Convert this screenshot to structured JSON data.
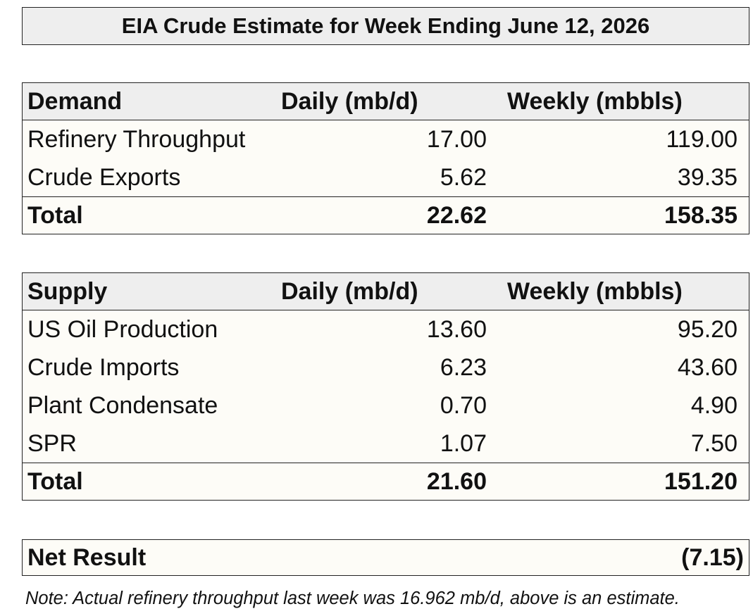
{
  "title": "EIA Crude Estimate for Week Ending June 12, 2026",
  "demand": {
    "header": {
      "label": "Demand",
      "daily": "Daily (mb/d)",
      "weekly": "Weekly (mbbls)"
    },
    "rows": [
      {
        "label": "Refinery Throughput",
        "daily": "17.00",
        "weekly": "119.00"
      },
      {
        "label": "Crude Exports",
        "daily": "5.62",
        "weekly": "39.35"
      }
    ],
    "total": {
      "label": "Total",
      "daily": "22.62",
      "weekly": "158.35"
    }
  },
  "supply": {
    "header": {
      "label": "Supply",
      "daily": "Daily (mb/d)",
      "weekly": "Weekly (mbbls)"
    },
    "rows": [
      {
        "label": "US Oil Production",
        "daily": "13.60",
        "weekly": "95.20"
      },
      {
        "label": "Crude Imports",
        "daily": "6.23",
        "weekly": "43.60"
      },
      {
        "label": "Plant Condensate",
        "daily": "0.70",
        "weekly": "4.90"
      },
      {
        "label": "SPR",
        "daily": "1.07",
        "weekly": "7.50"
      }
    ],
    "total": {
      "label": "Total",
      "daily": "21.60",
      "weekly": "151.20"
    }
  },
  "net_result": {
    "label": "Net Result",
    "value": "(7.15)"
  },
  "note": "Note: Actual refinery throughput last week was 16.962 mb/d, above is an estimate.",
  "colors": {
    "header_bg": "#eeeeee",
    "table_bg": "#fdfcf7",
    "border": "#222222"
  }
}
